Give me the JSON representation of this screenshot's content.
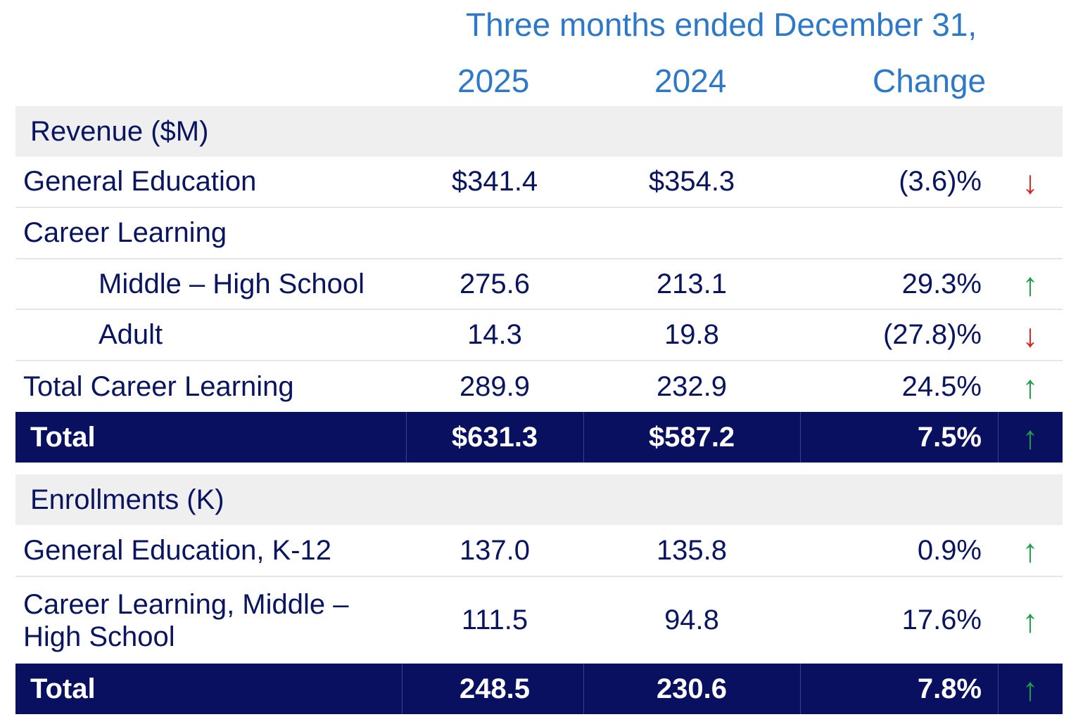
{
  "header": {
    "period": "Three months ended December 31,",
    "col_2025": "2025",
    "col_2024": "2024",
    "col_change": "Change"
  },
  "revenue": {
    "section": "Revenue ($M)",
    "rows": [
      {
        "label": "General Education",
        "v2025": "$341.4",
        "v2024": "$354.3",
        "change": "(3.6)%",
        "arrow": "↓"
      },
      {
        "label": "Career Learning",
        "v2025": "",
        "v2024": "",
        "change": "",
        "arrow": ""
      },
      {
        "label": "Middle – High School",
        "v2025": "275.6",
        "v2024": "213.1",
        "change": "29.3%",
        "arrow": "↑"
      },
      {
        "label": "Adult",
        "v2025": "14.3",
        "v2024": "19.8",
        "change": "(27.8)%",
        "arrow": "↓"
      },
      {
        "label": "Total Career Learning",
        "v2025": "289.9",
        "v2024": "232.9",
        "change": "24.5%",
        "arrow": "↑"
      }
    ],
    "total": {
      "label": "Total",
      "v2025": "$631.3",
      "v2024": "$587.2",
      "change": "7.5%",
      "arrow": "↑"
    }
  },
  "enrollments": {
    "section": "Enrollments (K)",
    "rows": [
      {
        "label": "General Education, K-12",
        "v2025": "137.0",
        "v2024": "135.8",
        "change": "0.9%",
        "arrow": "↑"
      },
      {
        "label": "Career Learning, Middle – High School",
        "v2025": "111.5",
        "v2024": "94.8",
        "change": "17.6%",
        "arrow": "↑"
      }
    ],
    "total": {
      "label": "Total",
      "v2025": "248.5",
      "v2024": "230.6",
      "change": "7.8%",
      "arrow": "↑"
    }
  },
  "colors": {
    "header": "#2e78c8",
    "text": "#0a1560",
    "total_bg": "#0a1060",
    "up": "#1aa048",
    "down": "#e02020"
  }
}
